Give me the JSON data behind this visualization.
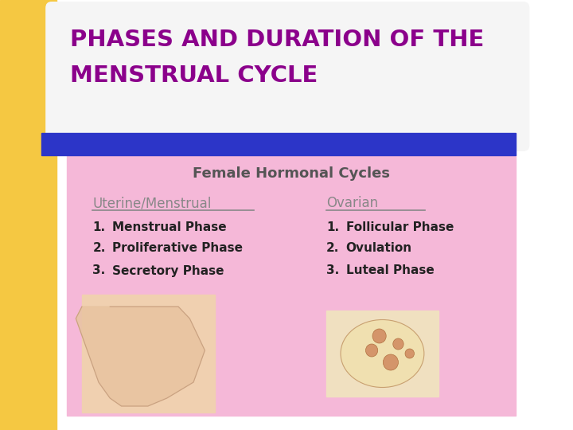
{
  "background_color": "#ffffff",
  "left_bar_color": "#F5C842",
  "title_line1": "PHASES AND DURATION OF THE",
  "title_line2": "MENSTRUAL CYCLE",
  "title_color": "#8B008B",
  "blue_bar_color": "#2C35C8",
  "pink_box_color": "#F5B8D8",
  "subtitle": "Female Hormonal Cycles",
  "subtitle_color": "#555555",
  "col1_header": "Uterine/Menstrual",
  "col2_header": "Ovarian",
  "header_color": "#888888",
  "col1_items": [
    "Menstrual Phase",
    "Proliferative Phase",
    "Secretory Phase"
  ],
  "col2_items": [
    "Follicular Phase",
    "Ovulation",
    "Luteal Phase"
  ],
  "list_color": "#222222",
  "font_family": "DejaVu Sans"
}
